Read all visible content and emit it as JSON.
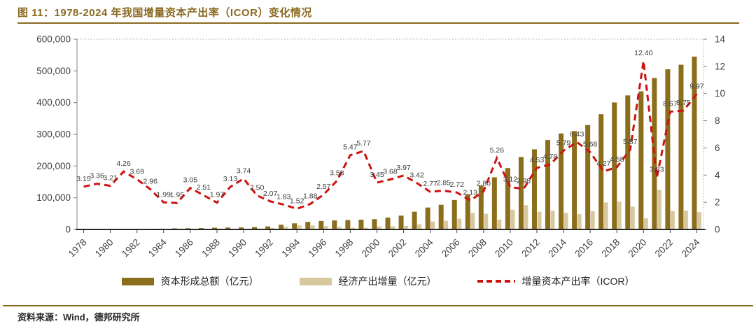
{
  "figure": {
    "title": "图 11：1978-2024 年我国增量资本产出率（ICOR）变化情况",
    "source": "资料来源：Wind，德邦研究所"
  },
  "colors": {
    "title": "#8a6a21",
    "rule": "#8a6a21",
    "bar_capital": "#8a6e1c",
    "bar_output": "#d8c89e",
    "icor_line": "#cc1310",
    "data_label": "#3c3c3c",
    "axis_text": "#404040",
    "axis_line": "#808080",
    "baseline": "#262626",
    "dotted_border": "#aaaaaa"
  },
  "legend": [
    {
      "label": "资本形成总额（亿元）",
      "swatch": "bar_capital"
    },
    {
      "label": "经济产出增量（亿元）",
      "swatch": "bar_output"
    },
    {
      "label": "增量资本产出率（ICOR）",
      "swatch": "icor_line"
    }
  ],
  "chart_data": {
    "type": "combo",
    "title": "1978-2024 年我国增量资本产出率（ICOR）变化情况",
    "x": [
      1978,
      1979,
      1980,
      1981,
      1982,
      1983,
      1984,
      1985,
      1986,
      1987,
      1988,
      1989,
      1990,
      1991,
      1992,
      1993,
      1994,
      1995,
      1996,
      1997,
      1998,
      1999,
      2000,
      2001,
      2002,
      2003,
      2004,
      2005,
      2006,
      2007,
      2008,
      2009,
      2010,
      2011,
      2012,
      2013,
      2014,
      2015,
      2016,
      2017,
      2018,
      2019,
      2020,
      2021,
      2022,
      2023,
      2024
    ],
    "x_tick_labels": [
      "1978",
      "1980",
      "1982",
      "1984",
      "1986",
      "1988",
      "1990",
      "1992",
      "1994",
      "1996",
      "1998",
      "2000",
      "2002",
      "2004",
      "2006",
      "2008",
      "2010",
      "2012",
      "2014",
      "2016",
      "2018",
      "2020",
      "2022",
      "2024"
    ],
    "series": [
      {
        "name": "资本形成总额（亿元）",
        "type": "bar",
        "axis": "left",
        "values": [
          1378,
          1474,
          1590,
          1581,
          1760,
          2005,
          2468,
          3386,
          3846,
          4322,
          5495,
          6095,
          6444,
          7517,
          9636,
          14998,
          19261,
          23877,
          26867,
          28458,
          29545,
          30701,
          32500,
          37461,
          43632,
          55963,
          69168,
          77857,
          92954,
          110943,
          138325,
          164463,
          193604,
          228344,
          252773,
          282122,
          302717,
          310155,
          329187,
          363506,
          400503,
          422754,
          435540,
          477571,
          505058,
          519420,
          545000
        ]
      },
      {
        "name": "经济产出增量（亿元）",
        "type": "bar",
        "axis": "left",
        "values": [
          437,
          439,
          495,
          371,
          477,
          677,
          1240,
          1736,
          1261,
          1722,
          2789,
          1947,
          1723,
          3007,
          4655,
          8196,
          12672,
          12700,
          10454,
          7949,
          5401,
          5321,
          9420,
          10180,
          10990,
          16363,
          24971,
          27318,
          34174,
          52086,
          49402,
          31267,
          62053,
          76626,
          55800,
          59021,
          52283,
          48236,
          57956,
          85130,
          87446,
          72019,
          35124,
          124692,
          58254,
          59362,
          54664
        ]
      },
      {
        "name": "增量资本产出率（ICOR）",
        "type": "line",
        "style": "dashed",
        "axis": "right",
        "values": [
          3.15,
          3.36,
          3.21,
          4.26,
          3.69,
          2.96,
          1.99,
          1.95,
          3.05,
          2.51,
          1.97,
          3.13,
          3.74,
          2.5,
          2.07,
          1.83,
          1.52,
          1.88,
          2.57,
          3.58,
          5.47,
          5.77,
          3.45,
          3.68,
          3.97,
          3.42,
          2.77,
          2.85,
          2.72,
          2.13,
          2.8,
          5.26,
          3.12,
          2.98,
          4.53,
          4.78,
          5.79,
          6.43,
          5.68,
          4.27,
          4.58,
          5.87,
          12.4,
          3.83,
          8.67,
          8.75,
          9.97
        ],
        "labels": [
          "3.15",
          "3.36",
          "3.21",
          "4.26",
          "3.69",
          "2.96",
          "1.99",
          "1.95",
          "3.05",
          "2.51",
          "1.97",
          "3.13",
          "3.74",
          "2.50",
          "2.07",
          "1.83",
          "1.52",
          "1.88",
          "2.57",
          "3.58",
          "5.47",
          "5.77",
          "3.45",
          "3.68",
          "3.97",
          "3.42",
          "2.77",
          "2.85",
          "2.72",
          "2.13",
          "2.80",
          "5.26",
          "3.12",
          "2.98",
          "4.53",
          "4.78",
          "5.79",
          "6.43",
          "5.68",
          "4.27",
          "4.58",
          "5.87",
          "12.40",
          "3.83",
          "8.67",
          "8.75",
          "9.97"
        ]
      }
    ],
    "left_axis": {
      "min": 0,
      "max": 600000,
      "ticks": [
        "0",
        "100,000",
        "200,000",
        "300,000",
        "400,000",
        "500,000",
        "600,000"
      ]
    },
    "right_axis": {
      "min": 0,
      "max": 14,
      "ticks": [
        "0",
        "2",
        "4",
        "6",
        "8",
        "10",
        "12",
        "14"
      ]
    },
    "grid": false,
    "legend_position": "bottom"
  }
}
